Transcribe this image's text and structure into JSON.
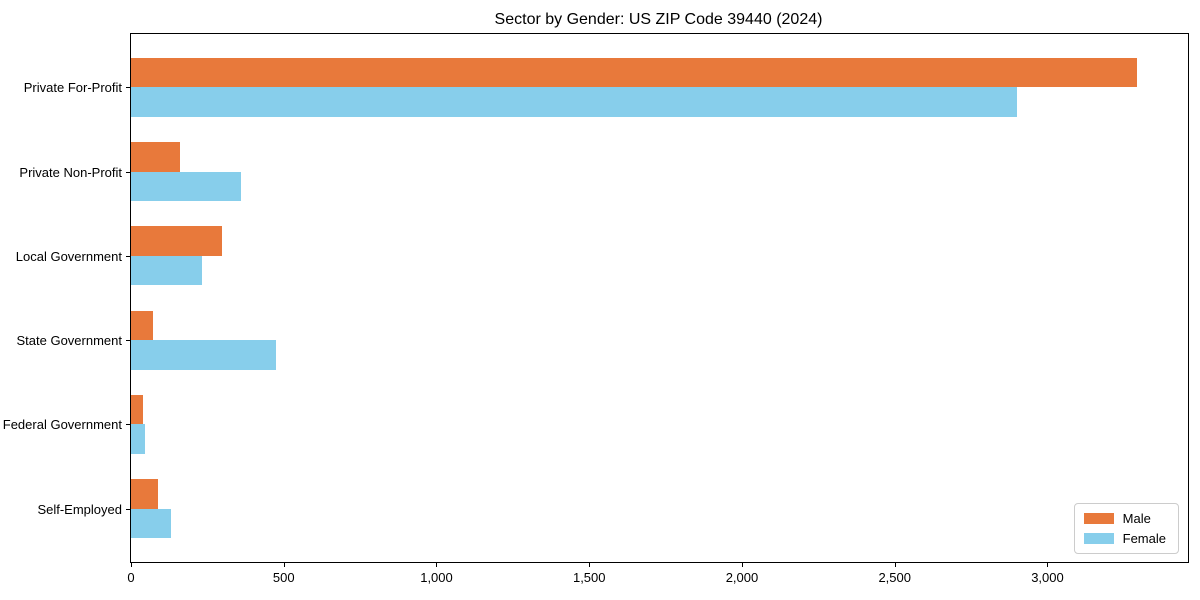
{
  "title": "Sector by Gender: US ZIP Code 39440 (2024)",
  "chart_data": {
    "type": "bar",
    "orientation": "horizontal",
    "title": "Sector by Gender: US ZIP Code 39440 (2024)",
    "xlabel": "",
    "ylabel": "",
    "categories": [
      "Private For-Profit",
      "Private Non-Profit",
      "Local Government",
      "State Government",
      "Federal Government",
      "Self-Employed"
    ],
    "series": [
      {
        "name": "Male",
        "color": "#e8793b",
        "values": [
          3294,
          162,
          299,
          73,
          40,
          90
        ]
      },
      {
        "name": "Female",
        "color": "#87ceeb",
        "values": [
          2900,
          359,
          234,
          474,
          46,
          131
        ]
      }
    ],
    "xlim": [
      0,
      3460
    ],
    "xticks": [
      0,
      500,
      1000,
      1500,
      2000,
      2500,
      3000
    ],
    "xtick_labels": [
      "0",
      "500",
      "1,000",
      "1,500",
      "2,000",
      "2,500",
      "3,000"
    ],
    "grid": false,
    "legend_position": "lower right"
  },
  "legend": {
    "items": [
      {
        "label": "Male",
        "color": "#e8793b"
      },
      {
        "label": "Female",
        "color": "#87ceeb"
      }
    ]
  }
}
